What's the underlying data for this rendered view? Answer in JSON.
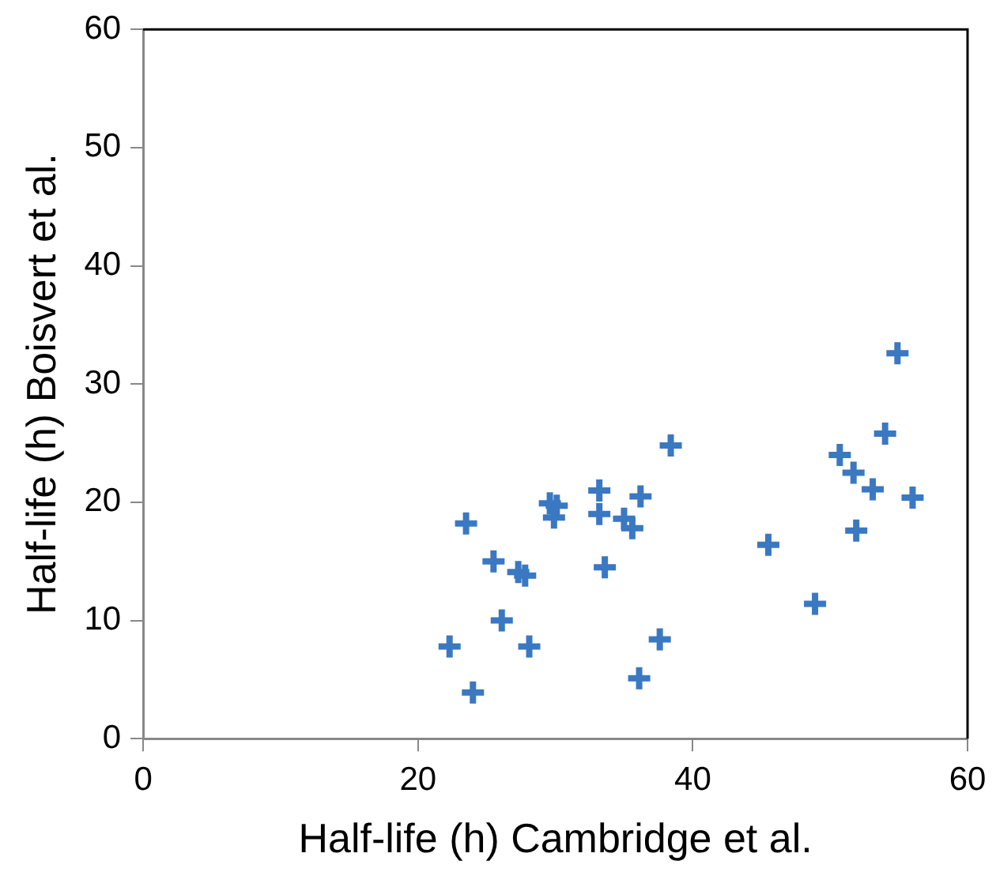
{
  "chart_data": {
    "type": "scatter",
    "xlabel": "Half-life (h) Cambridge et al.",
    "ylabel": "Half-life (h) Boisvert et al.",
    "x": [
      22.3,
      23.5,
      24.0,
      25.5,
      26.1,
      27.3,
      27.8,
      28.1,
      29.6,
      30.1,
      29.9,
      33.2,
      33.2,
      33.6,
      35.0,
      35.6,
      36.2,
      36.1,
      37.6,
      38.4,
      45.5,
      48.9,
      50.7,
      51.7,
      51.9,
      53.1,
      54.0,
      54.9,
      56.0
    ],
    "series": [
      {
        "color": "#3a78c2",
        "values": [
          7.8,
          18.2,
          3.9,
          15.0,
          10.0,
          14.1,
          13.8,
          7.8,
          19.9,
          19.7,
          18.7,
          21.0,
          19.0,
          14.5,
          18.6,
          17.8,
          20.5,
          5.1,
          8.4,
          24.8,
          16.4,
          11.4,
          24.0,
          22.5,
          17.6,
          21.1,
          25.8,
          32.6,
          20.4
        ]
      }
    ],
    "xlim": [
      0,
      60
    ],
    "xticks": [
      0,
      20,
      40,
      60
    ],
    "ylim": [
      0,
      60
    ],
    "yticks": [
      0,
      10,
      20,
      30,
      40,
      50,
      60
    ],
    "marker": "cross",
    "grid": false,
    "legend": false
  }
}
